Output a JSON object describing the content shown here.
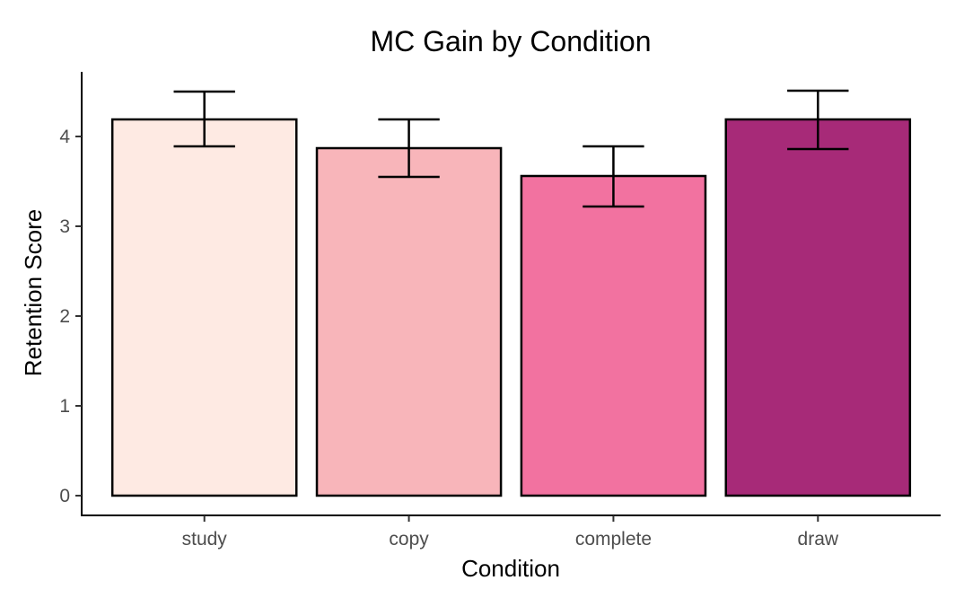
{
  "chart_data": {
    "type": "bar",
    "title": "MC Gain by Condition",
    "xlabel": "Condition",
    "ylabel": "Retention Score",
    "categories": [
      "study",
      "copy",
      "complete",
      "draw"
    ],
    "values": [
      4.19,
      3.87,
      3.56,
      4.19
    ],
    "error_lower": [
      3.89,
      3.55,
      3.22,
      3.86
    ],
    "error_upper": [
      4.5,
      4.19,
      3.89,
      4.51
    ],
    "colors": [
      "#FEEAE3",
      "#F8B5BA",
      "#F272A0",
      "#A72A78"
    ],
    "ylim": [
      -0.22,
      4.72
    ],
    "yticks": [
      "0",
      "1",
      "2",
      "3",
      "4"
    ],
    "grid": false,
    "legend": "none"
  }
}
